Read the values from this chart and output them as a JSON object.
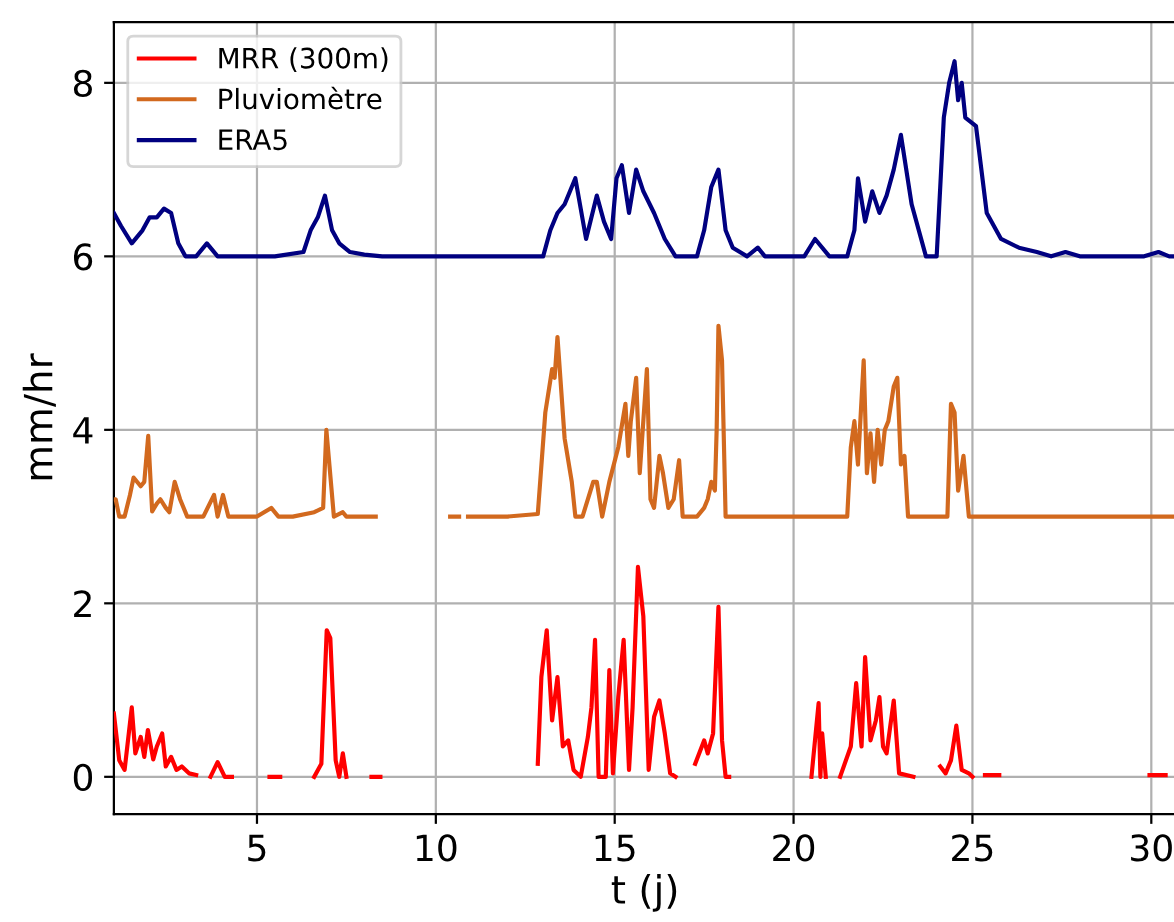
{
  "chart_data": {
    "type": "line",
    "xlabel": "t (j)",
    "ylabel": "mm/hr",
    "xlim": [
      1.0,
      30.7
    ],
    "ylim": [
      -0.43,
      8.7
    ],
    "xticks": [
      5,
      10,
      15,
      20,
      25,
      30
    ],
    "yticks": [
      0,
      2,
      4,
      6,
      8
    ],
    "grid": true,
    "legend": "top left",
    "line_style": "solid",
    "series": [
      {
        "name": "MRR (300m)",
        "color": "#ff0000",
        "x": [
          1.0,
          1.15,
          1.3,
          1.5,
          1.6,
          1.75,
          1.85,
          1.95,
          2.1,
          2.2,
          2.35,
          2.45,
          2.6,
          2.75,
          2.9,
          3.1,
          3.3,
          3.5,
          3.7,
          3.9,
          4.1,
          4.3,
          4.8,
          5.35,
          5.65,
          6.1,
          6.6,
          6.8,
          6.95,
          7.05,
          7.2,
          7.3,
          7.4,
          7.5,
          7.9,
          8.2,
          8.45,
          10.5,
          12.85,
          12.95,
          13.1,
          13.25,
          13.4,
          13.55,
          13.7,
          13.85,
          14.05,
          14.25,
          14.35,
          14.45,
          14.55,
          14.75,
          14.85,
          14.95,
          15.1,
          15.25,
          15.4,
          15.5,
          15.65,
          15.8,
          15.95,
          16.1,
          16.25,
          16.4,
          16.55,
          16.7,
          17.0,
          17.25,
          17.5,
          17.6,
          17.75,
          17.9,
          18.0,
          18.1,
          18.2,
          19.5,
          20.5,
          20.7,
          20.75,
          20.8,
          20.9,
          21.1,
          21.3,
          21.6,
          21.75,
          21.9,
          22.0,
          22.15,
          22.3,
          22.4,
          22.5,
          22.6,
          22.8,
          22.95,
          23.35,
          23.7,
          24.1,
          24.25,
          24.4,
          24.55,
          24.7,
          24.9,
          25.0,
          25.2,
          25.35,
          25.75,
          27.0,
          29.95,
          30.4
        ],
        "values": [
          0.73,
          0.19,
          0.08,
          0.8,
          0.27,
          0.46,
          0.23,
          0.54,
          0.2,
          0.35,
          0.5,
          0.12,
          0.23,
          0.08,
          0.12,
          0.04,
          0.02,
          null,
          0.0,
          0.17,
          0.0,
          0.0,
          null,
          0.0,
          0.0,
          null,
          0.0,
          0.15,
          1.69,
          1.6,
          0.19,
          0.0,
          0.27,
          0.0,
          null,
          0.0,
          0.0,
          null,
          0.15,
          1.15,
          1.69,
          0.65,
          1.15,
          0.35,
          0.42,
          0.08,
          0.0,
          0.46,
          0.8,
          1.58,
          0.0,
          0.0,
          1.23,
          0.04,
          0.92,
          1.58,
          0.08,
          0.8,
          2.42,
          1.85,
          0.08,
          0.69,
          0.88,
          0.5,
          0.04,
          0.0,
          null,
          0.15,
          0.42,
          0.27,
          0.5,
          1.96,
          0.42,
          0.0,
          0.0,
          null,
          0.0,
          0.85,
          0.0,
          0.5,
          0.0,
          null,
          0.0,
          0.35,
          1.08,
          0.35,
          1.38,
          0.42,
          0.65,
          0.92,
          0.35,
          0.27,
          0.88,
          0.04,
          0.0,
          null,
          0.12,
          0.04,
          0.19,
          0.59,
          0.08,
          0.04,
          0.0,
          null,
          0.02,
          0.02,
          null,
          0.02,
          0.02
        ]
      },
      {
        "name": "Pluviomètre",
        "color": "#d2691e",
        "x": [
          1.0,
          1.05,
          1.15,
          1.3,
          1.45,
          1.55,
          1.75,
          1.85,
          1.96,
          2.07,
          2.2,
          2.3,
          2.45,
          2.55,
          2.7,
          2.85,
          3.05,
          3.5,
          3.8,
          3.9,
          4.05,
          4.2,
          5.0,
          5.4,
          5.6,
          6.0,
          6.6,
          6.85,
          6.94,
          7.15,
          7.4,
          7.5,
          8.32,
          9.5,
          10.4,
          10.65,
          10.75,
          10.9,
          12.0,
          12.85,
          13.06,
          13.25,
          13.32,
          13.4,
          13.6,
          13.8,
          13.9,
          14.1,
          14.4,
          14.5,
          14.65,
          14.85,
          15.1,
          15.3,
          15.38,
          15.45,
          15.6,
          15.7,
          15.9,
          16.0,
          16.1,
          16.25,
          16.35,
          16.5,
          16.65,
          16.8,
          16.9,
          17.3,
          17.5,
          17.6,
          17.7,
          17.8,
          17.85,
          17.9,
          18.0,
          18.1,
          19.0,
          20.0,
          21.5,
          21.6,
          21.7,
          21.8,
          21.96,
          22.05,
          22.15,
          22.25,
          22.35,
          22.45,
          22.55,
          22.65,
          22.8,
          22.9,
          23.0,
          23.1,
          23.2,
          24.1,
          24.3,
          24.4,
          24.5,
          24.6,
          24.75,
          24.9,
          26.0,
          28.0,
          30.7
        ],
        "values": [
          3.2,
          3.2,
          3.0,
          3.0,
          3.25,
          3.45,
          3.35,
          3.4,
          3.93,
          3.06,
          3.15,
          3.2,
          3.1,
          3.05,
          3.4,
          3.2,
          3.0,
          3.0,
          3.25,
          3.0,
          3.25,
          3.0,
          3.0,
          3.1,
          3.0,
          3.0,
          3.05,
          3.1,
          4.0,
          3.0,
          3.05,
          3.0,
          3.0,
          null,
          3.0,
          3.0,
          null,
          3.0,
          3.0,
          3.03,
          4.2,
          4.7,
          4.6,
          5.07,
          3.9,
          3.4,
          3.0,
          3.0,
          3.4,
          3.4,
          3.0,
          3.4,
          3.8,
          4.3,
          3.7,
          4.1,
          4.6,
          3.5,
          4.7,
          3.2,
          3.1,
          3.7,
          3.5,
          3.1,
          3.2,
          3.65,
          3.0,
          3.0,
          3.1,
          3.2,
          3.4,
          3.3,
          4.0,
          5.2,
          4.8,
          3.0,
          3.0,
          3.0,
          3.0,
          3.8,
          4.1,
          3.6,
          4.8,
          3.5,
          3.96,
          3.4,
          4.0,
          3.6,
          4.0,
          4.1,
          4.5,
          4.6,
          3.6,
          3.7,
          3.0,
          3.0,
          3.0,
          4.3,
          4.2,
          3.3,
          3.7,
          3.0,
          3.0,
          3.0,
          3.0
        ]
      },
      {
        "name": "ERA5",
        "color": "#000080",
        "x": [
          1.0,
          1.2,
          1.5,
          1.8,
          2.0,
          2.2,
          2.4,
          2.6,
          2.8,
          3.0,
          3.3,
          3.6,
          3.9,
          4.5,
          5.5,
          6.3,
          6.5,
          6.7,
          6.9,
          7.1,
          7.3,
          7.6,
          8.0,
          8.5,
          10.0,
          12.0,
          13.0,
          13.2,
          13.4,
          13.6,
          13.9,
          14.2,
          14.5,
          14.7,
          14.9,
          15.05,
          15.2,
          15.4,
          15.6,
          15.8,
          16.1,
          16.4,
          16.7,
          17.3,
          17.5,
          17.7,
          17.9,
          18.1,
          18.3,
          18.7,
          19.0,
          19.2,
          20.3,
          20.6,
          21.0,
          21.5,
          21.7,
          21.8,
          22.0,
          22.2,
          22.4,
          22.6,
          22.8,
          23.0,
          23.3,
          23.7,
          24.0,
          24.2,
          24.35,
          24.5,
          24.6,
          24.7,
          24.8,
          25.1,
          25.4,
          25.8,
          26.3,
          26.8,
          27.2,
          27.6,
          28.0,
          29.8,
          30.2,
          30.5,
          30.7
        ],
        "values": [
          6.5,
          6.35,
          6.15,
          6.3,
          6.45,
          6.45,
          6.55,
          6.5,
          6.15,
          6.0,
          6.0,
          6.15,
          6.0,
          6.0,
          6.0,
          6.05,
          6.3,
          6.45,
          6.7,
          6.3,
          6.15,
          6.05,
          6.02,
          6.0,
          6.0,
          6.0,
          6.0,
          6.3,
          6.5,
          6.6,
          6.9,
          6.2,
          6.7,
          6.4,
          6.2,
          6.9,
          7.05,
          6.5,
          7.0,
          6.75,
          6.5,
          6.2,
          6.0,
          6.0,
          6.3,
          6.8,
          7.0,
          6.3,
          6.1,
          6.0,
          6.1,
          6.0,
          6.0,
          6.2,
          6.0,
          6.0,
          6.3,
          6.9,
          6.4,
          6.75,
          6.5,
          6.7,
          7.0,
          7.4,
          6.6,
          6.0,
          6.0,
          7.6,
          8.0,
          8.25,
          7.8,
          8.0,
          7.6,
          7.5,
          6.5,
          6.2,
          6.1,
          6.05,
          6.0,
          6.05,
          6.0,
          6.0,
          6.05,
          6.0,
          6.0
        ]
      }
    ]
  }
}
